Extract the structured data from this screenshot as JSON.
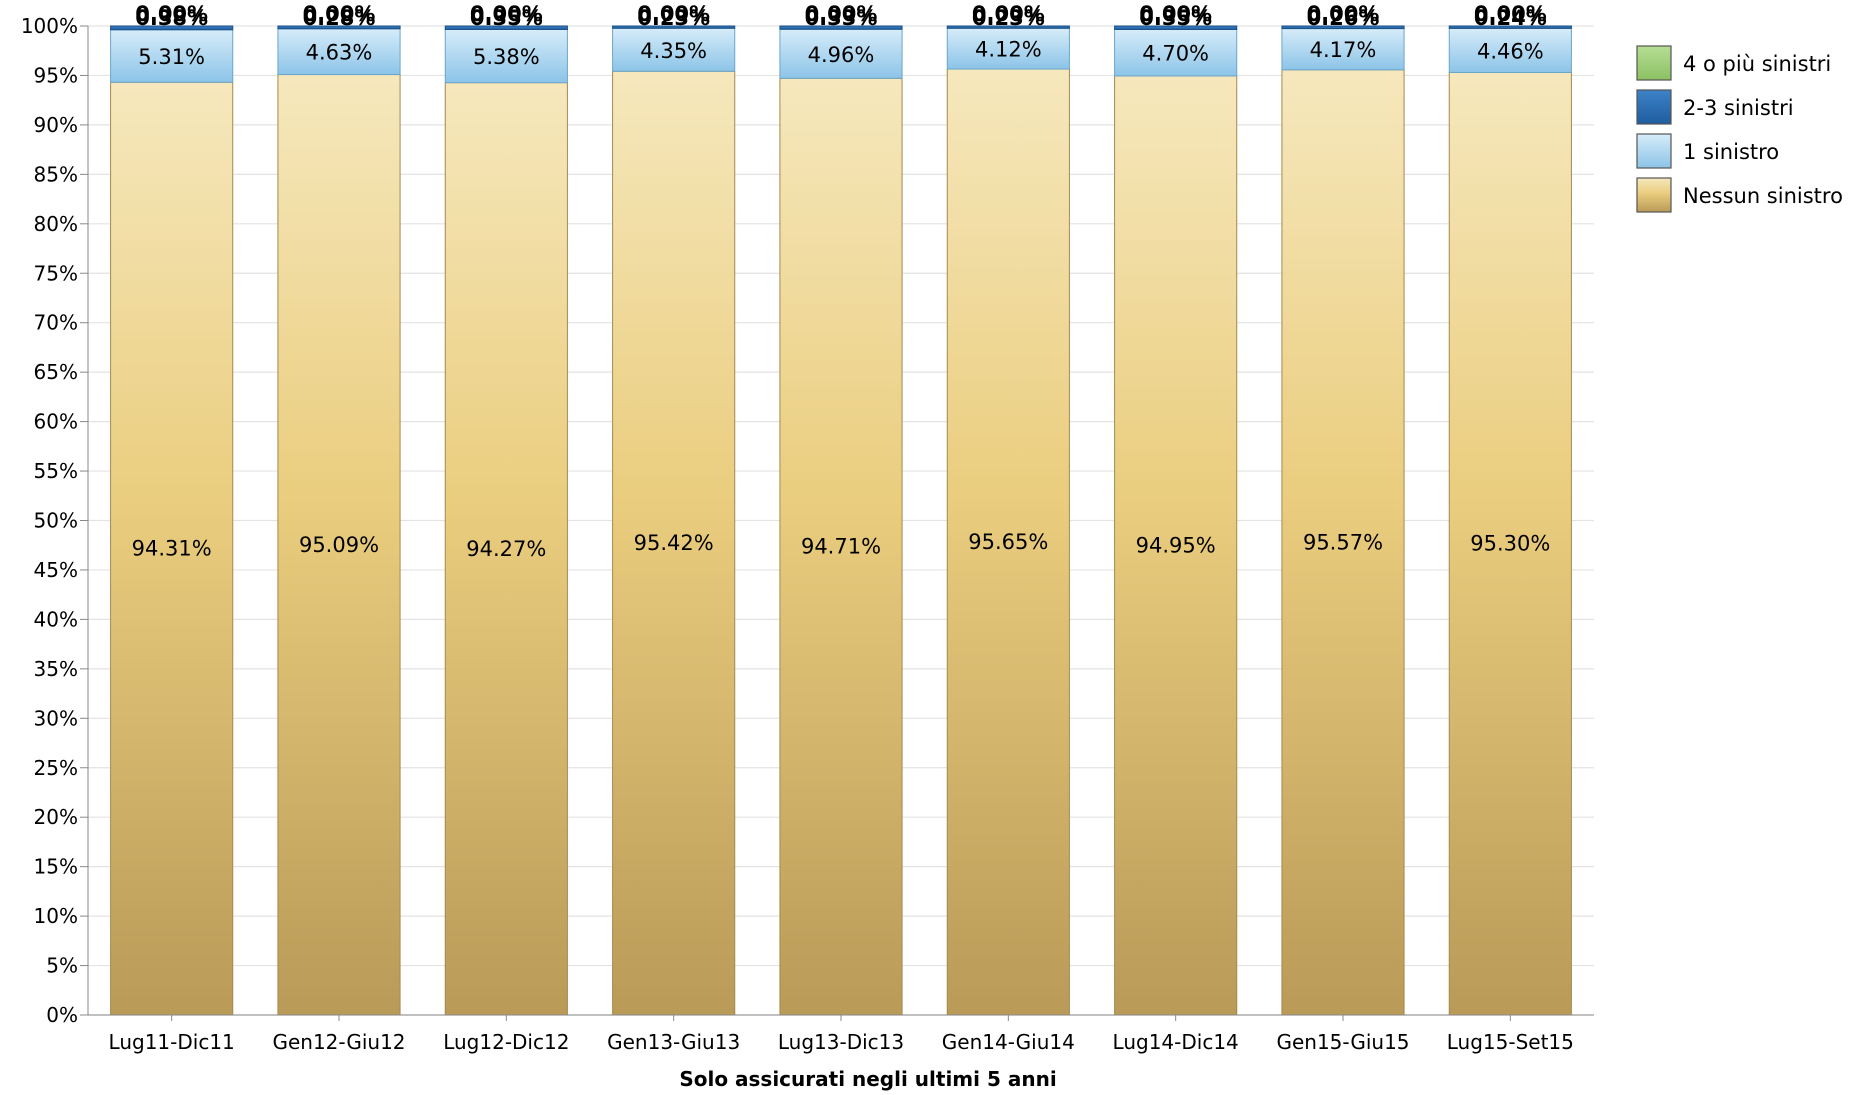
{
  "chart_data": {
    "type": "bar",
    "stacked": true,
    "title": "",
    "xlabel": "Solo assicurati negli ultimi 5 anni",
    "ylabel": "",
    "ylim": [
      0,
      100
    ],
    "ytick_step": 5,
    "y_unit": "%",
    "grid": true,
    "legend_position": "right",
    "categories": [
      "Lug11-Dic11",
      "Gen12-Giu12",
      "Lug12-Dic12",
      "Gen13-Giu13",
      "Lug13-Dic13",
      "Gen14-Giu14",
      "Lug14-Dic14",
      "Gen15-Giu15",
      "Lug15-Set15"
    ],
    "series": [
      {
        "name": "Nessun sinistro",
        "color": "#e8cd7e",
        "values": [
          94.31,
          95.09,
          94.27,
          95.42,
          94.71,
          95.65,
          94.95,
          95.57,
          95.3
        ],
        "labels": [
          "94.31%",
          "95.09%",
          "94.27%",
          "95.42%",
          "94.71%",
          "95.65%",
          "94.95%",
          "95.57%",
          "95.30%"
        ]
      },
      {
        "name": "1 sinistro",
        "color": "#9ccfee",
        "values": [
          5.31,
          4.63,
          5.38,
          4.35,
          4.96,
          4.12,
          4.7,
          4.17,
          4.46
        ],
        "labels": [
          "5.31%",
          "4.63%",
          "5.38%",
          "4.35%",
          "4.96%",
          "4.12%",
          "4.70%",
          "4.17%",
          "4.46%"
        ]
      },
      {
        "name": "2-3 sinistri",
        "color": "#2a6eb5",
        "values": [
          0.38,
          0.28,
          0.35,
          0.23,
          0.33,
          0.23,
          0.35,
          0.26,
          0.24
        ],
        "labels": [
          "0.38%",
          "0.28%",
          "0.35%",
          "0.23%",
          "0.33%",
          "0.23%",
          "0.35%",
          "0.26%",
          "0.24%"
        ]
      },
      {
        "name": "4 o più sinistri",
        "color": "#9fd07a",
        "values": [
          0.0,
          0.0,
          0.0,
          0.0,
          0.0,
          0.0,
          0.0,
          0.0,
          0.0
        ],
        "labels": [
          "0.00%",
          "0.00%",
          "0.00%",
          "0.00%",
          "0.00%",
          "0.00%",
          "0.00%",
          "0.00%",
          "0.00%"
        ]
      }
    ],
    "legend_order": [
      "4 o più sinistri",
      "2-3 sinistri",
      "1 sinistro",
      "Nessun sinistro"
    ]
  }
}
